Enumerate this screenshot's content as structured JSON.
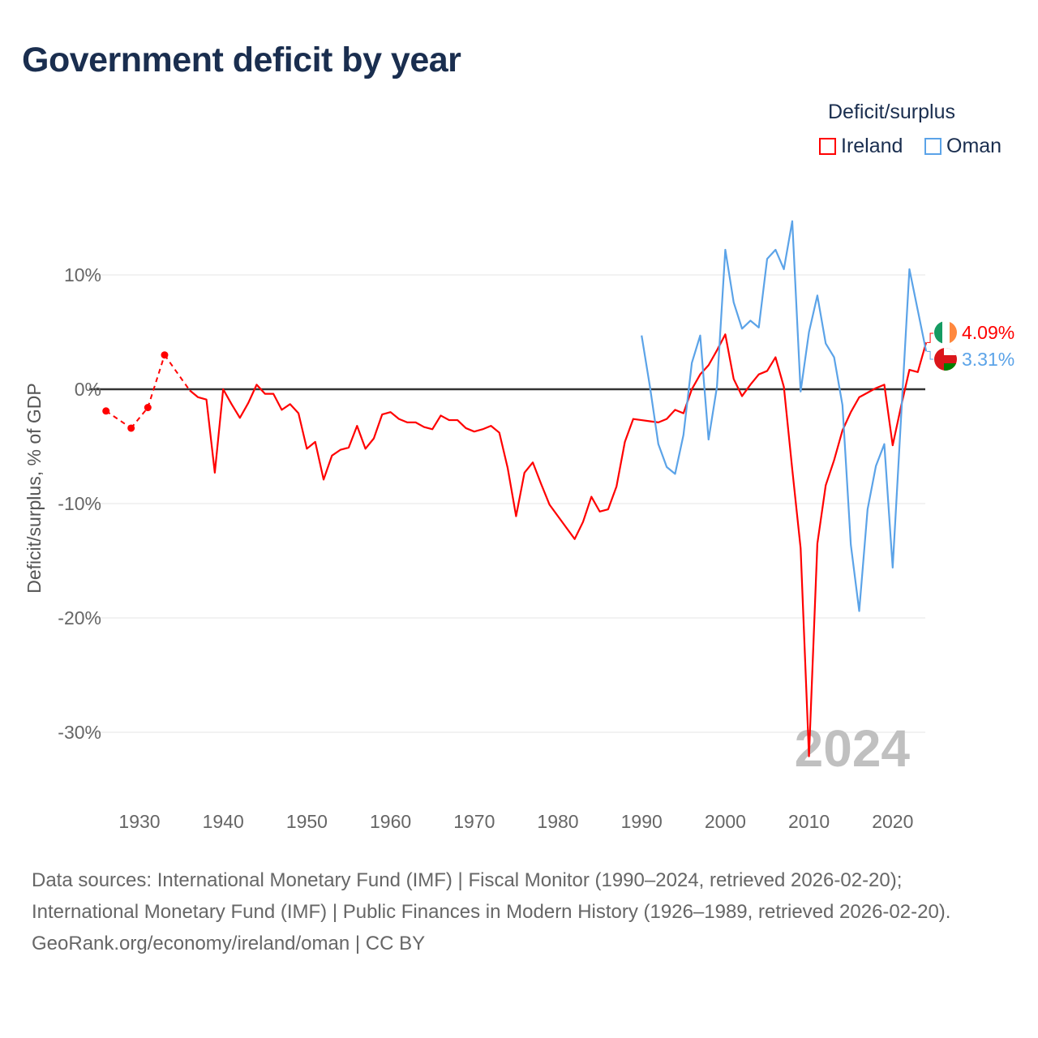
{
  "chart_data": {
    "type": "line",
    "title": "Government deficit by year",
    "xlabel": "",
    "ylabel": "Deficit/surplus, % of GDP",
    "xlim": [
      1926,
      2024
    ],
    "ylim": [
      -35,
      17
    ],
    "x_ticks": [
      1930,
      1940,
      1950,
      1960,
      1970,
      1980,
      1990,
      2000,
      2010,
      2020
    ],
    "y_ticks": [
      10,
      0,
      -10,
      -20,
      -30
    ],
    "y_tick_labels": [
      "10%",
      "0%",
      "-10%",
      "-20%",
      "-30%"
    ],
    "grid": true,
    "legend_title": "Deficit/surplus",
    "legend_position": "top-right",
    "year_annotation": "2024",
    "series": [
      {
        "name": "Ireland",
        "color": "#ff0000",
        "end_label": "4.09%",
        "points": [
          [
            1926,
            -1.9
          ],
          [
            1929,
            -3.4
          ],
          [
            1931,
            -1.6
          ],
          [
            1933,
            3.0
          ],
          [
            1936,
            -0.1
          ],
          [
            1937,
            -0.7
          ],
          [
            1938,
            -0.9
          ],
          [
            1939,
            -7.3
          ],
          [
            1940,
            0.0
          ],
          [
            1941,
            -1.3
          ],
          [
            1942,
            -2.5
          ],
          [
            1943,
            -1.2
          ],
          [
            1944,
            0.4
          ],
          [
            1945,
            -0.4
          ],
          [
            1946,
            -0.4
          ],
          [
            1947,
            -1.8
          ],
          [
            1948,
            -1.3
          ],
          [
            1949,
            -2.1
          ],
          [
            1950,
            -5.2
          ],
          [
            1951,
            -4.6
          ],
          [
            1952,
            -7.9
          ],
          [
            1953,
            -5.8
          ],
          [
            1954,
            -5.3
          ],
          [
            1955,
            -5.1
          ],
          [
            1956,
            -3.2
          ],
          [
            1957,
            -5.2
          ],
          [
            1958,
            -4.3
          ],
          [
            1959,
            -2.2
          ],
          [
            1960,
            -2.0
          ],
          [
            1961,
            -2.6
          ],
          [
            1962,
            -2.9
          ],
          [
            1963,
            -2.9
          ],
          [
            1964,
            -3.3
          ],
          [
            1965,
            -3.5
          ],
          [
            1966,
            -2.3
          ],
          [
            1967,
            -2.7
          ],
          [
            1968,
            -2.7
          ],
          [
            1969,
            -3.4
          ],
          [
            1970,
            -3.7
          ],
          [
            1971,
            -3.5
          ],
          [
            1972,
            -3.2
          ],
          [
            1973,
            -3.8
          ],
          [
            1974,
            -6.9
          ],
          [
            1975,
            -11.1
          ],
          [
            1976,
            -7.3
          ],
          [
            1977,
            -6.4
          ],
          [
            1978,
            -8.3
          ],
          [
            1979,
            -10.1
          ],
          [
            1980,
            -11.1
          ],
          [
            1981,
            -12.1
          ],
          [
            1982,
            -13.1
          ],
          [
            1983,
            -11.6
          ],
          [
            1984,
            -9.4
          ],
          [
            1985,
            -10.7
          ],
          [
            1986,
            -10.5
          ],
          [
            1987,
            -8.5
          ],
          [
            1988,
            -4.6
          ],
          [
            1989,
            -2.6
          ],
          [
            1990,
            -2.7
          ],
          [
            1991,
            -2.8
          ],
          [
            1992,
            -2.9
          ],
          [
            1993,
            -2.6
          ],
          [
            1994,
            -1.8
          ],
          [
            1995,
            -2.1
          ],
          [
            1996,
            0.0
          ],
          [
            1997,
            1.3
          ],
          [
            1998,
            2.1
          ],
          [
            1999,
            3.4
          ],
          [
            2000,
            4.8
          ],
          [
            2001,
            0.9
          ],
          [
            2002,
            -0.6
          ],
          [
            2003,
            0.4
          ],
          [
            2004,
            1.3
          ],
          [
            2005,
            1.6
          ],
          [
            2006,
            2.8
          ],
          [
            2007,
            0.2
          ],
          [
            2008,
            -7.0
          ],
          [
            2009,
            -13.9
          ],
          [
            2010,
            -32.1
          ],
          [
            2011,
            -13.5
          ],
          [
            2012,
            -8.4
          ],
          [
            2013,
            -6.2
          ],
          [
            2014,
            -3.6
          ],
          [
            2015,
            -2.0
          ],
          [
            2016,
            -0.7
          ],
          [
            2017,
            -0.3
          ],
          [
            2018,
            0.1
          ],
          [
            2019,
            0.4
          ],
          [
            2020,
            -4.9
          ],
          [
            2021,
            -1.5
          ],
          [
            2022,
            1.7
          ],
          [
            2023,
            1.5
          ],
          [
            2024,
            4.09
          ]
        ]
      },
      {
        "name": "Oman",
        "color": "#5ba3e8",
        "end_label": "3.31%",
        "points": [
          [
            1990,
            4.7
          ],
          [
            1991,
            0.2
          ],
          [
            1992,
            -4.8
          ],
          [
            1993,
            -6.8
          ],
          [
            1994,
            -7.4
          ],
          [
            1995,
            -4.0
          ],
          [
            1996,
            2.3
          ],
          [
            1997,
            4.7
          ],
          [
            1998,
            -4.4
          ],
          [
            1999,
            0.2
          ],
          [
            2000,
            12.2
          ],
          [
            2001,
            7.6
          ],
          [
            2002,
            5.3
          ],
          [
            2003,
            6.0
          ],
          [
            2004,
            5.4
          ],
          [
            2005,
            11.4
          ],
          [
            2006,
            12.2
          ],
          [
            2007,
            10.5
          ],
          [
            2008,
            14.7
          ],
          [
            2009,
            -0.2
          ],
          [
            2010,
            5.0
          ],
          [
            2011,
            8.2
          ],
          [
            2012,
            4.0
          ],
          [
            2013,
            2.8
          ],
          [
            2014,
            -1.4
          ],
          [
            2015,
            -13.6
          ],
          [
            2016,
            -19.4
          ],
          [
            2017,
            -10.5
          ],
          [
            2018,
            -6.7
          ],
          [
            2019,
            -4.8
          ],
          [
            2020,
            -15.6
          ],
          [
            2021,
            -2.5
          ],
          [
            2022,
            10.5
          ],
          [
            2023,
            6.9
          ],
          [
            2024,
            3.31
          ]
        ]
      }
    ]
  },
  "footer": {
    "sources": "Data sources: International Monetary Fund (IMF) | Fiscal Monitor (1990–2024, retrieved 2026-02-20); International Monetary Fund (IMF) | Public Finances in Modern History (1926–1989, retrieved 2026-02-20).",
    "attribution": "GeoRank.org/economy/ireland/oman | CC BY"
  }
}
